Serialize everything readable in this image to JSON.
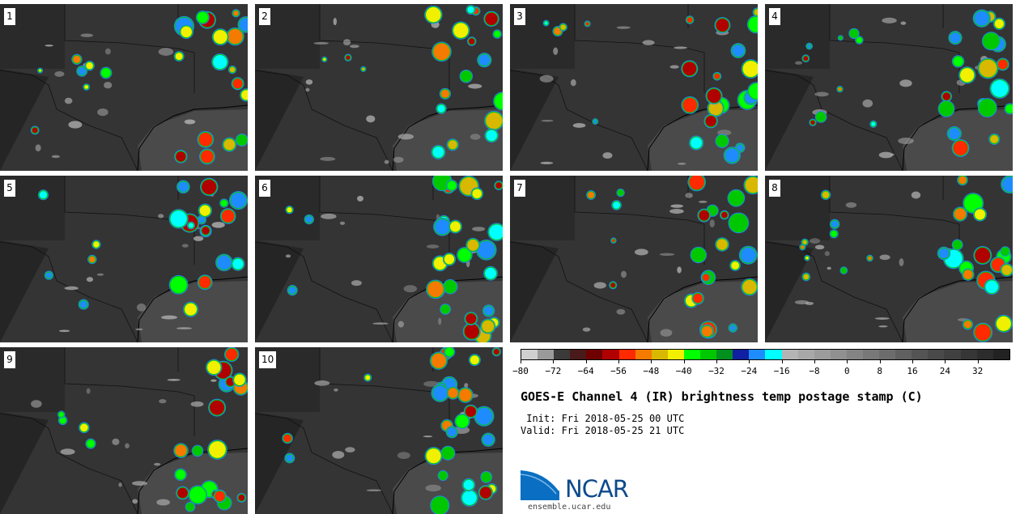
{
  "panels": [
    {
      "label": "1"
    },
    {
      "label": "2"
    },
    {
      "label": "3"
    },
    {
      "label": "4"
    },
    {
      "label": "5"
    },
    {
      "label": "6"
    },
    {
      "label": "7"
    },
    {
      "label": "8"
    },
    {
      "label": "9"
    },
    {
      "label": "10"
    }
  ],
  "colorbar": {
    "colors": [
      "#cfcfcf",
      "#9a9a9a",
      "#3a3a3a",
      "#4a1a1a",
      "#6e0000",
      "#b00000",
      "#ff2a00",
      "#f47a00",
      "#d8b800",
      "#f0f000",
      "#00ff00",
      "#00c800",
      "#00901e",
      "#1020a0",
      "#1e8cff",
      "#00ffff",
      "#b4b4b4",
      "#a8a8a8",
      "#9c9c9c",
      "#909090",
      "#848484",
      "#787878",
      "#6c6c6c",
      "#606060",
      "#545454",
      "#4a4a4a",
      "#404040",
      "#363636",
      "#2c2c2c",
      "#222222"
    ],
    "ticks": [
      "−80",
      "−72",
      "−64",
      "−56",
      "−48",
      "−40",
      "−32",
      "−24",
      "−16",
      "−8",
      "0",
      "8",
      "16",
      "24",
      "32"
    ]
  },
  "title": "GOES-E Channel 4 (IR) brightness temp postage stamp (C)",
  "init_line": " Init: Fri 2018-05-25 00 UTC",
  "valid_line": "Valid: Fri 2018-05-25 21 UTC",
  "logo": {
    "text": "NCAR",
    "url": "ensemble.ucar.edu"
  }
}
